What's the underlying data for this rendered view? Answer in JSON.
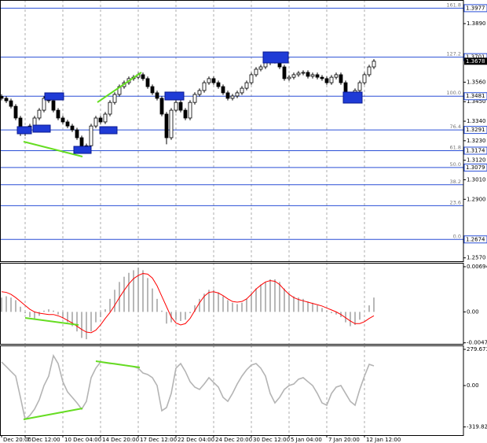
{
  "chart_data": [
    {
      "type": "candlestick",
      "color": "#000000",
      "levels_color": "#2a4fd6",
      "ylim": [
        1.2551,
        1.4023
      ],
      "yticks": [
        {
          "value": 1.389,
          "label": "1.3890"
        },
        {
          "value": 1.356,
          "label": "1.3560"
        },
        {
          "value": 1.345,
          "label": "1.3450"
        },
        {
          "value": 1.334,
          "label": "1.3340"
        },
        {
          "value": 1.323,
          "label": "1.3230"
        },
        {
          "value": 1.312,
          "label": "1.3120"
        },
        {
          "value": 1.301,
          "label": "1.3010"
        },
        {
          "value": 1.29,
          "label": "1.2900"
        },
        {
          "value": 1.257,
          "label": "1.2570"
        }
      ],
      "current_price": 1.3678,
      "levels": [
        {
          "name": "161.8",
          "value": 1.3977,
          "label": "1.3977"
        },
        {
          "name": "127.2",
          "value": 1.3701,
          "label": "1.3701"
        },
        {
          "name": "100.0",
          "value": 1.3481,
          "label": "1.3481"
        },
        {
          "name": "76.4",
          "value": 1.3291,
          "label": "1.3291"
        },
        {
          "name": "61.8",
          "value": 1.3174,
          "label": "1.3174"
        },
        {
          "name": "50.0",
          "value": 1.3079,
          "label": "1.3079"
        },
        {
          "name": "38.2",
          "value": 1.2982
        },
        {
          "name": "23.6",
          "value": 1.2864
        },
        {
          "name": "0.0",
          "value": 1.2674,
          "label": "1.2674"
        }
      ],
      "categories": [
        "Dec 20:00",
        null,
        null,
        null,
        null,
        "7 Dec 12:00",
        null,
        null,
        null,
        null,
        null,
        null,
        null,
        "10 Dec 04:00",
        null,
        null,
        null,
        null,
        null,
        null,
        null,
        "14 Dec 20:00",
        null,
        null,
        null,
        null,
        null,
        null,
        null,
        "17 Dec 12:00",
        null,
        null,
        null,
        null,
        null,
        null,
        null,
        "22 Dec 04:00",
        null,
        null,
        null,
        null,
        null,
        null,
        null,
        "24 Dec 20:00",
        null,
        null,
        null,
        null,
        null,
        null,
        null,
        "30 Dec 12:00",
        null,
        null,
        null,
        null,
        null,
        null,
        null,
        "5 Jan 04:00",
        null,
        null,
        null,
        null,
        null,
        null,
        null,
        "7 Jan 20:00",
        null,
        null,
        null,
        null,
        null,
        null,
        null,
        "12 Jan 12:00",
        null,
        null
      ],
      "open": [
        1.348,
        1.3469,
        1.3455,
        1.3424,
        1.3358,
        1.3269,
        1.3291,
        1.3313,
        1.3358,
        1.3402,
        1.3469,
        1.3455,
        1.3402,
        1.3358,
        1.3336,
        1.3313,
        1.3291,
        1.3247,
        1.3189,
        1.3202,
        1.3313,
        1.3358,
        1.3336,
        1.338,
        1.3446,
        1.3491,
        1.3535,
        1.3557,
        1.358,
        1.3588,
        1.3602,
        1.358,
        1.3535,
        1.35,
        1.3469,
        1.338,
        1.3247,
        1.3402,
        1.3446,
        1.3402,
        1.3358,
        1.3446,
        1.3491,
        1.3513,
        1.3557,
        1.358,
        1.3557,
        1.3535,
        1.35,
        1.3469,
        1.3482,
        1.35,
        1.3526,
        1.3557,
        1.3602,
        1.3633,
        1.3646,
        1.3668,
        1.369,
        1.3677,
        1.3646,
        1.358,
        1.3588,
        1.3602,
        1.3611,
        1.3615,
        1.3593,
        1.3602,
        1.3588,
        1.358,
        1.3557,
        1.3588,
        1.3602,
        1.3557,
        1.3491,
        1.3469,
        1.3513,
        1.3557,
        1.3602,
        1.3646
      ],
      "high": [
        1.3492,
        1.3481,
        1.3467,
        1.3436,
        1.337,
        1.3303,
        1.3325,
        1.337,
        1.3414,
        1.3481,
        1.3481,
        1.3467,
        1.3414,
        1.337,
        1.3348,
        1.3325,
        1.3303,
        1.3259,
        1.3214,
        1.3325,
        1.337,
        1.337,
        1.3392,
        1.3458,
        1.3503,
        1.3547,
        1.3569,
        1.3592,
        1.36,
        1.3614,
        1.3614,
        1.3592,
        1.3547,
        1.3512,
        1.3481,
        1.3392,
        1.3414,
        1.3458,
        1.3458,
        1.3414,
        1.3458,
        1.3503,
        1.3525,
        1.3569,
        1.3592,
        1.3592,
        1.3569,
        1.3547,
        1.3512,
        1.3494,
        1.3512,
        1.3538,
        1.3569,
        1.3614,
        1.3645,
        1.3658,
        1.368,
        1.3705,
        1.3702,
        1.3689,
        1.3658,
        1.36,
        1.3614,
        1.3623,
        1.3627,
        1.3627,
        1.3614,
        1.3614,
        1.36,
        1.3592,
        1.36,
        1.3614,
        1.3614,
        1.3569,
        1.3503,
        1.3525,
        1.3569,
        1.3614,
        1.3658,
        1.369
      ],
      "low": [
        1.3457,
        1.3443,
        1.3412,
        1.3346,
        1.3257,
        1.3257,
        1.3279,
        1.3301,
        1.3346,
        1.339,
        1.3443,
        1.339,
        1.3346,
        1.3324,
        1.3301,
        1.3279,
        1.3235,
        1.3165,
        1.317,
        1.319,
        1.3301,
        1.3324,
        1.3324,
        1.3368,
        1.3434,
        1.3479,
        1.3523,
        1.3545,
        1.3568,
        1.3576,
        1.3568,
        1.3523,
        1.3488,
        1.3457,
        1.3368,
        1.321,
        1.3235,
        1.339,
        1.339,
        1.3346,
        1.3346,
        1.3434,
        1.3479,
        1.3501,
        1.3545,
        1.3545,
        1.3523,
        1.3488,
        1.3457,
        1.3457,
        1.347,
        1.3488,
        1.3514,
        1.3545,
        1.359,
        1.3621,
        1.3634,
        1.3656,
        1.3665,
        1.3634,
        1.3568,
        1.3568,
        1.3576,
        1.359,
        1.3599,
        1.3581,
        1.3581,
        1.3576,
        1.3568,
        1.3545,
        1.3545,
        1.3576,
        1.3545,
        1.3479,
        1.3457,
        1.3457,
        1.3501,
        1.3545,
        1.359,
        1.3634
      ],
      "close": [
        1.3469,
        1.3455,
        1.3424,
        1.3358,
        1.3269,
        1.3291,
        1.3313,
        1.3358,
        1.3402,
        1.3469,
        1.3455,
        1.3402,
        1.3358,
        1.3336,
        1.3313,
        1.3291,
        1.3247,
        1.3189,
        1.3202,
        1.3313,
        1.3358,
        1.3336,
        1.338,
        1.3446,
        1.3491,
        1.3535,
        1.3557,
        1.358,
        1.3588,
        1.3602,
        1.358,
        1.3535,
        1.35,
        1.3469,
        1.338,
        1.3247,
        1.3402,
        1.3446,
        1.3402,
        1.3358,
        1.3446,
        1.3491,
        1.3513,
        1.3557,
        1.358,
        1.3557,
        1.3535,
        1.35,
        1.3469,
        1.3482,
        1.35,
        1.3526,
        1.3557,
        1.3602,
        1.3633,
        1.3646,
        1.3668,
        1.369,
        1.3677,
        1.3646,
        1.358,
        1.3588,
        1.3602,
        1.3611,
        1.3615,
        1.3593,
        1.3602,
        1.3588,
        1.358,
        1.3557,
        1.3588,
        1.3602,
        1.3557,
        1.3491,
        1.3469,
        1.3513,
        1.3557,
        1.3602,
        1.3646,
        1.3678
      ]
    },
    {
      "type": "macd",
      "ylim": [
        -0.00491,
        0.00754
      ],
      "yticks": [
        0.00694,
        {
          "value": 0,
          "label": "0.00"
        },
        -0.00475
      ],
      "histogram": {
        "color": "#b8b8b8",
        "values": [
          0.0022,
          0.0024,
          0.0022,
          0.0018,
          0.0008,
          -0.0002,
          -0.0008,
          -0.001,
          -0.0006,
          0.0002,
          0.0004,
          0.0002,
          -0.0004,
          -0.001,
          -0.0016,
          -0.0022,
          -0.003,
          -0.004,
          -0.0042,
          -0.003,
          -0.0016,
          -0.0008,
          0.0004,
          0.002,
          0.0034,
          0.0046,
          0.0054,
          0.006,
          0.0064,
          0.0068,
          0.0064,
          0.0052,
          0.0036,
          0.002,
          0.0002,
          -0.0018,
          -0.0016,
          -0.0012,
          -0.0014,
          -0.0012,
          -0.0002,
          0.001,
          0.002,
          0.0028,
          0.0034,
          0.0034,
          0.003,
          0.0024,
          0.0018,
          0.0014,
          0.0012,
          0.0014,
          0.002,
          0.0028,
          0.0036,
          0.0042,
          0.0046,
          0.005,
          0.005,
          0.0046,
          0.0036,
          0.0028,
          0.0024,
          0.0022,
          0.002,
          0.0016,
          0.0014,
          0.001,
          0.0006,
          0.0002,
          -0.0002,
          -0.0004,
          -0.0008,
          -0.0016,
          -0.0022,
          -0.002,
          -0.0012,
          0.0,
          0.001,
          0.0022
        ]
      },
      "signal": {
        "color": "#ff0000",
        "values": [
          0.0031,
          0.003,
          0.0027,
          0.0022,
          0.0016,
          0.001,
          0.0004,
          0.0,
          -0.0002,
          -0.0003,
          -0.0004,
          -0.0004,
          -0.0006,
          -0.0009,
          -0.0013,
          -0.0017,
          -0.0022,
          -0.0027,
          -0.0031,
          -0.0032,
          -0.0028,
          -0.002,
          -0.001,
          -0.0001,
          0.001,
          0.0022,
          0.0033,
          0.0043,
          0.0051,
          0.0056,
          0.0059,
          0.0058,
          0.0052,
          0.004,
          0.0024,
          0.0008,
          -0.0008,
          -0.0017,
          -0.002,
          -0.0018,
          -0.001,
          0.0002,
          0.0014,
          0.0024,
          0.003,
          0.0031,
          0.0029,
          0.0025,
          0.002,
          0.0016,
          0.0015,
          0.0016,
          0.002,
          0.0027,
          0.0035,
          0.0041,
          0.0046,
          0.0048,
          0.0047,
          0.0042,
          0.0034,
          0.0027,
          0.0022,
          0.0019,
          0.0017,
          0.0015,
          0.0013,
          0.0011,
          0.0009,
          0.0006,
          0.0003,
          0.0,
          -0.0004,
          -0.0009,
          -0.0014,
          -0.0018,
          -0.0018,
          -0.0015,
          -0.001,
          -0.0006
        ]
      }
    },
    {
      "type": "line",
      "ylim": [
        -383,
        310
      ],
      "color": "#b4b4b4",
      "yticks": [
        279.6732,
        {
          "value": 0,
          "label": "0.00"
        },
        -319.822
      ],
      "values": [
        182,
        146,
        109,
        73,
        -91,
        -261,
        -231,
        -182,
        -109,
        0,
        73,
        231,
        170,
        30,
        -49,
        -91,
        -134,
        -182,
        -122,
        61,
        134,
        182,
        176,
        170,
        170,
        164,
        158,
        152,
        146,
        134,
        97,
        85,
        61,
        0,
        -195,
        -170,
        -61,
        134,
        170,
        109,
        30,
        -12,
        -30,
        12,
        61,
        24,
        -12,
        -91,
        -122,
        -61,
        12,
        73,
        122,
        158,
        170,
        134,
        73,
        -61,
        -134,
        -91,
        -30,
        0,
        12,
        49,
        61,
        30,
        0,
        -61,
        -134,
        -152,
        -61,
        -12,
        0,
        -61,
        -122,
        -152,
        -30,
        73,
        164,
        152
      ]
    }
  ]
}
